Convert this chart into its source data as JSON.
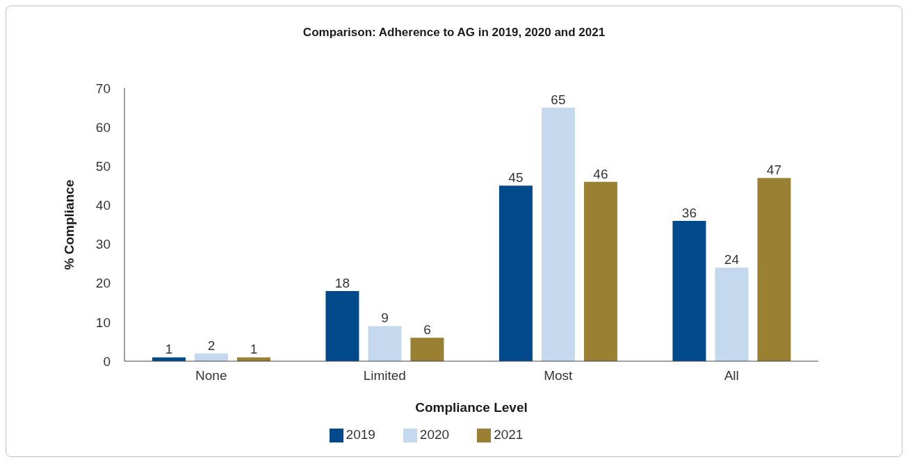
{
  "chart_data": {
    "type": "bar",
    "title": "Comparison: Adherence to AG in 2019, 2020 and 2021",
    "xlabel": "Compliance Level",
    "ylabel": "% Compliance",
    "categories": [
      "None",
      "Limited",
      "Most",
      "All"
    ],
    "series": [
      {
        "name": "2019",
        "color": "#004a8c",
        "values": [
          1,
          18,
          45,
          36
        ]
      },
      {
        "name": "2020",
        "color": "#c5d9ee",
        "values": [
          2,
          9,
          65,
          24
        ]
      },
      {
        "name": "2021",
        "color": "#9a8033",
        "values": [
          1,
          6,
          46,
          47
        ]
      }
    ],
    "ylim": [
      0,
      70
    ],
    "yticks": [
      0,
      10,
      20,
      30,
      40,
      50,
      60,
      70
    ],
    "grid": false,
    "legend": "bottom",
    "data_labels": true
  }
}
